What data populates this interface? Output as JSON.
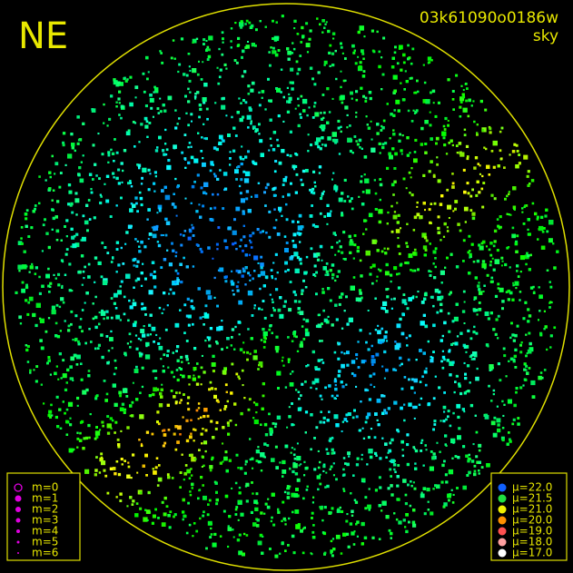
{
  "corner_label": "NE",
  "image_id": "03k61090o0186w",
  "mode": "sky",
  "magnitude_legend": [
    "m=0",
    "m=1",
    "m=2",
    "m=3",
    "m=4",
    "m=5",
    "m=6"
  ],
  "brightness_legend": [
    "μ=22.0",
    "μ=21.5",
    "μ=21.0",
    "μ=20.0",
    "μ=19.0",
    "μ=18.0",
    "μ=17.0"
  ]
}
